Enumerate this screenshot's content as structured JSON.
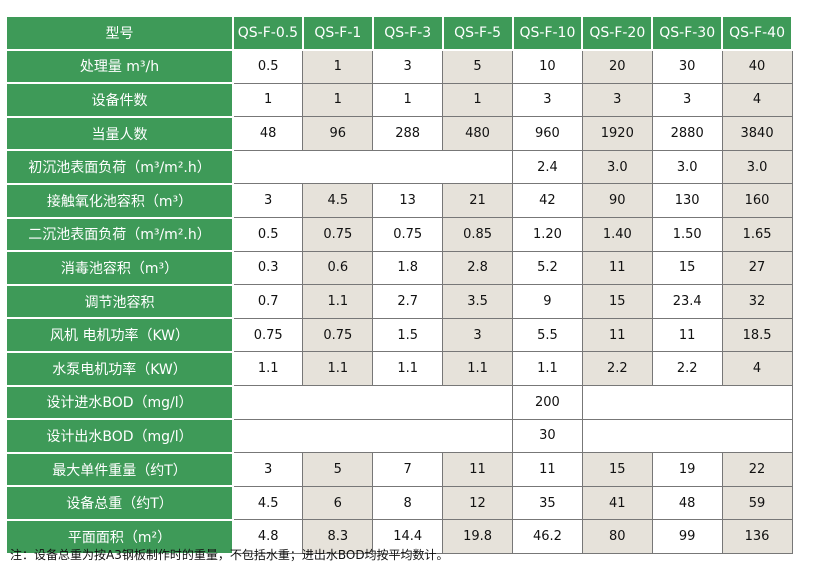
{
  "table": {
    "header": [
      "型号",
      "QS-F-0.5",
      "QS-F-1",
      "QS-F-3",
      "QS-F-5",
      "QS-F-10",
      "QS-F-20",
      "QS-F-30",
      "QS-F-40"
    ],
    "rows": [
      {
        "label": "处理量 m³/h",
        "cells": [
          "0.5",
          "1",
          "3",
          "5",
          "10",
          "20",
          "30",
          "40"
        ]
      },
      {
        "label": "设备件数",
        "cells": [
          "1",
          "1",
          "1",
          "1",
          "3",
          "3",
          "3",
          "4"
        ]
      },
      {
        "label": "当量人数",
        "cells": [
          "48",
          "96",
          "288",
          "480",
          "960",
          "1920",
          "2880",
          "3840"
        ]
      },
      {
        "label": "初沉池表面负荷（m³/m².h）",
        "cells": [
          null,
          null,
          null,
          null,
          "2.4",
          "3.0",
          "3.0",
          "3.0"
        ]
      },
      {
        "label": "接触氧化池容积（m³）",
        "cells": [
          "3",
          "4.5",
          "13",
          "21",
          "42",
          "90",
          "130",
          "160"
        ]
      },
      {
        "label": "二沉池表面负荷（m³/m².h）",
        "cells": [
          "0.5",
          "0.75",
          "0.75",
          "0.85",
          "1.20",
          "1.40",
          "1.50",
          "1.65"
        ]
      },
      {
        "label": "消毒池容积（m³）",
        "cells": [
          "0.3",
          "0.6",
          "1.8",
          "2.8",
          "5.2",
          "11",
          "15",
          "27"
        ]
      },
      {
        "label": "调节池容积",
        "cells": [
          "0.7",
          "1.1",
          "2.7",
          "3.5",
          "9",
          "15",
          "23.4",
          "32"
        ]
      },
      {
        "label": "风机 电机功率（KW）",
        "cells": [
          "0.75",
          "0.75",
          "1.5",
          "3",
          "5.5",
          "11",
          "11",
          "18.5"
        ]
      },
      {
        "label": "水泵电机功率（KW）",
        "cells": [
          "1.1",
          "1.1",
          "1.1",
          "1.1",
          "1.1",
          "2.2",
          "2.2",
          "4"
        ]
      },
      {
        "label": "设计进水BOD（mg/l）",
        "cells": [
          null,
          null,
          null,
          null,
          "200",
          null,
          null,
          null
        ]
      },
      {
        "label": "设计出水BOD（mg/l）",
        "cells": [
          null,
          null,
          null,
          null,
          "30",
          null,
          null,
          null
        ]
      },
      {
        "label": "最大单件重量（约T）",
        "cells": [
          "3",
          "5",
          "7",
          "11",
          "11",
          "15",
          "19",
          "22"
        ]
      },
      {
        "label": "设备总重（约T）",
        "cells": [
          "4.5",
          "6",
          "8",
          "12",
          "35",
          "41",
          "48",
          "59"
        ]
      },
      {
        "label": "平面面积（m²）",
        "cells": [
          "4.8",
          "8.3",
          "14.4",
          "19.8",
          "46.2",
          "80",
          "99",
          "136"
        ]
      }
    ],
    "note": "注：设备总重为按A3钢板制作时的重量，不包括水重；进出水BOD均按平均数计。"
  }
}
